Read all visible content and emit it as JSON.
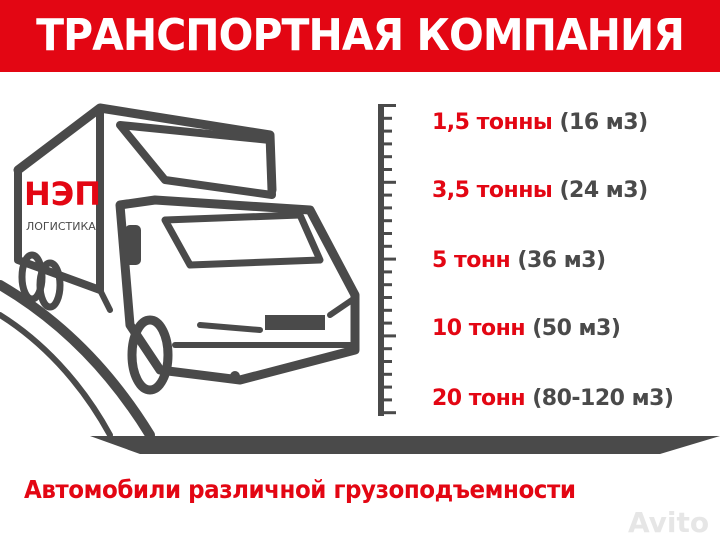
{
  "header": {
    "title": "ТРАНСПОРТНАЯ КОМПАНИЯ"
  },
  "logo": {
    "brand": "НЭП",
    "subtitle": "ЛОГИСТИКА"
  },
  "capacities": [
    {
      "tons": "1,5 тонны",
      "volume": "(16 м3)"
    },
    {
      "tons": "3,5 тонны",
      "volume": "(24 м3)"
    },
    {
      "tons": "5 тонн",
      "volume": "(36 м3)"
    },
    {
      "tons": "10 тонн",
      "volume": "(50 м3)"
    },
    {
      "tons": "20 тонн",
      "volume": "(80-120 м3)"
    }
  ],
  "footer": {
    "text": "Автомобили различной грузоподъемности"
  },
  "watermark": "Avito",
  "colors": {
    "accent": "#e30613",
    "graphite": "#4a4a4a"
  }
}
